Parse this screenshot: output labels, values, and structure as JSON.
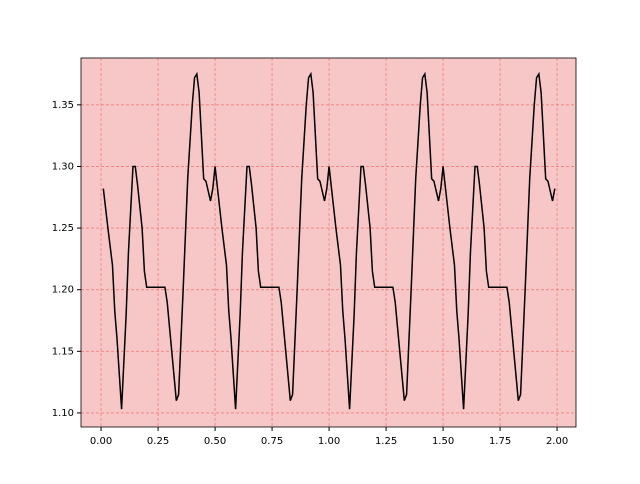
{
  "chart_data": {
    "type": "line",
    "x": [
      0.01,
      0.03,
      0.05,
      0.06,
      0.07,
      0.09,
      0.11,
      0.12,
      0.14,
      0.15,
      0.16,
      0.18,
      0.19,
      0.2,
      0.28,
      0.29,
      0.31,
      0.33,
      0.34,
      0.36,
      0.38,
      0.4,
      0.41,
      0.42,
      0.43,
      0.45,
      0.46,
      0.47,
      0.48,
      0.49,
      0.5,
      0.53,
      0.55,
      0.56,
      0.57,
      0.59,
      0.61,
      0.62,
      0.64,
      0.65,
      0.66,
      0.68,
      0.69,
      0.7,
      0.78,
      0.79,
      0.81,
      0.83,
      0.84,
      0.86,
      0.88,
      0.9,
      0.91,
      0.92,
      0.93,
      0.95,
      0.96,
      0.97,
      0.98,
      0.99,
      1.0,
      1.03,
      1.05,
      1.06,
      1.07,
      1.09,
      1.11,
      1.12,
      1.14,
      1.15,
      1.16,
      1.18,
      1.19,
      1.2,
      1.28,
      1.29,
      1.31,
      1.33,
      1.34,
      1.36,
      1.38,
      1.4,
      1.41,
      1.42,
      1.43,
      1.45,
      1.46,
      1.47,
      1.48,
      1.49,
      1.5,
      1.53,
      1.55,
      1.56,
      1.57,
      1.59,
      1.61,
      1.62,
      1.64,
      1.65,
      1.66,
      1.68,
      1.69,
      1.7,
      1.78,
      1.79,
      1.81,
      1.83,
      1.84,
      1.86,
      1.88,
      1.9,
      1.91,
      1.92,
      1.93,
      1.95,
      1.96,
      1.97,
      1.98,
      1.99
    ],
    "series": [
      {
        "color": "#000000",
        "values": [
          1.282,
          1.25,
          1.22,
          1.183,
          1.16,
          1.103,
          1.18,
          1.23,
          1.3,
          1.3,
          1.285,
          1.25,
          1.215,
          1.202,
          1.202,
          1.19,
          1.15,
          1.11,
          1.115,
          1.2,
          1.29,
          1.35,
          1.372,
          1.375,
          1.36,
          1.29,
          1.288,
          1.28,
          1.272,
          1.282,
          1.3,
          1.25,
          1.22,
          1.183,
          1.16,
          1.103,
          1.18,
          1.23,
          1.3,
          1.3,
          1.285,
          1.25,
          1.215,
          1.202,
          1.202,
          1.19,
          1.15,
          1.11,
          1.115,
          1.2,
          1.29,
          1.35,
          1.372,
          1.375,
          1.36,
          1.29,
          1.288,
          1.28,
          1.272,
          1.282,
          1.3,
          1.25,
          1.22,
          1.183,
          1.16,
          1.103,
          1.18,
          1.23,
          1.3,
          1.3,
          1.285,
          1.25,
          1.215,
          1.202,
          1.202,
          1.19,
          1.15,
          1.11,
          1.115,
          1.2,
          1.29,
          1.35,
          1.372,
          1.375,
          1.36,
          1.29,
          1.288,
          1.28,
          1.272,
          1.282,
          1.3,
          1.25,
          1.22,
          1.183,
          1.16,
          1.103,
          1.18,
          1.23,
          1.3,
          1.3,
          1.285,
          1.25,
          1.215,
          1.202,
          1.202,
          1.19,
          1.15,
          1.11,
          1.115,
          1.2,
          1.29,
          1.35,
          1.372,
          1.375,
          1.36,
          1.29,
          1.288,
          1.28,
          1.272,
          1.282
        ]
      }
    ],
    "xlim": [
      -0.088,
      2.083
    ],
    "ylim": [
      1.0886,
      1.388
    ],
    "xticks": [
      {
        "value": 0,
        "label": "0.00"
      },
      {
        "value": 0.25,
        "label": "0.25"
      },
      {
        "value": 0.5,
        "label": "0.50"
      },
      {
        "value": 0.75,
        "label": "0.75"
      },
      {
        "value": 1,
        "label": "1.00"
      },
      {
        "value": 1.25,
        "label": "1.25"
      },
      {
        "value": 1.5,
        "label": "1.50"
      },
      {
        "value": 1.75,
        "label": "1.75"
      },
      {
        "value": 2,
        "label": "2.00"
      }
    ],
    "yticks": [
      {
        "value": 1.1,
        "label": "1.10"
      },
      {
        "value": 1.15,
        "label": "1.15"
      },
      {
        "value": 1.2,
        "label": "1.20"
      },
      {
        "value": 1.25,
        "label": "1.25"
      },
      {
        "value": 1.3,
        "label": "1.30"
      },
      {
        "value": 1.35,
        "label": "1.35"
      }
    ],
    "grid": true,
    "background": "#f7c6c6",
    "grid_color": "#f08080"
  }
}
